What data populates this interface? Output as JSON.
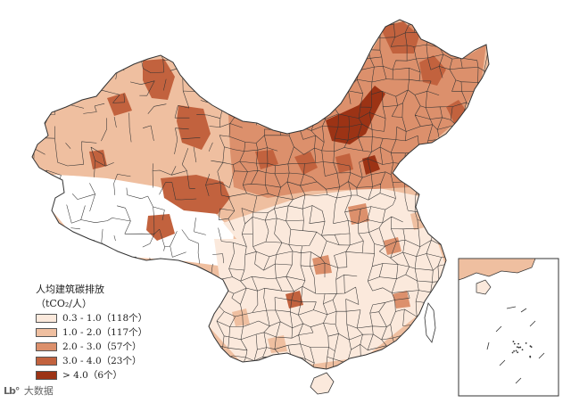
{
  "legend": {
    "title": "人均建筑碳排放",
    "unit": "（tCO₂/人）",
    "items": [
      {
        "label": "0.3 - 1.0（118个）",
        "color": "#fbe9dc"
      },
      {
        "label": "1.0 - 2.0（117个）",
        "color": "#efbfa0"
      },
      {
        "label": "2.0 - 3.0（57个）",
        "color": "#dc906c"
      },
      {
        "label": "3.0 - 4.0（23个）",
        "color": "#c2623e"
      },
      {
        "label": "> 4.0（6个）",
        "color": "#9c3315"
      }
    ]
  },
  "map": {
    "no_data_color": "#ffffff",
    "border_color": "#333333"
  },
  "watermark": {
    "logo": "Lb°",
    "text": "大数据"
  }
}
